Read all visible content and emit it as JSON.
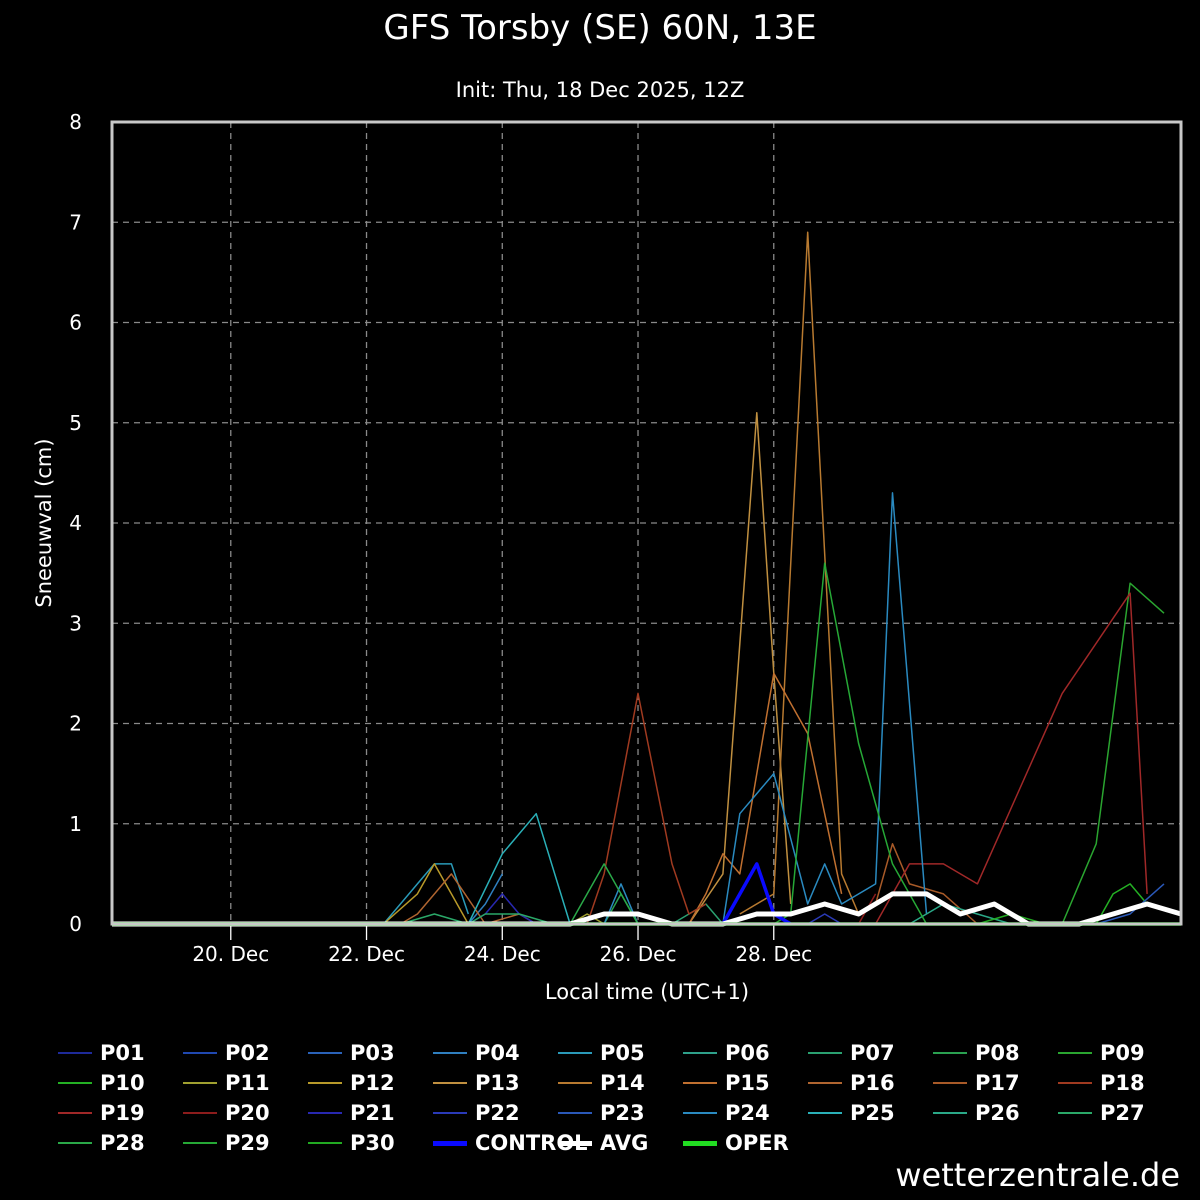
{
  "title": "GFS Torsby (SE) 60N, 13E",
  "subtitle": "Init: Thu, 18 Dec 2025, 12Z",
  "credit": "wetterzentrale.de",
  "chart_data": {
    "type": "line",
    "xlabel": "Local time (UTC+1)",
    "ylabel": "Sneeuwval (cm)",
    "ylim": [
      0,
      8
    ],
    "yticks": [
      "0",
      "1",
      "2",
      "3",
      "4",
      "5",
      "6",
      "7",
      "8"
    ],
    "xlim": [
      "2025-12-18T19:00",
      "2026-01-03T13:00"
    ],
    "xticks": [
      {
        "t": "2025-12-20T13:00",
        "label": "20. Dec"
      },
      {
        "t": "2025-12-22T13:00",
        "label": "22. Dec"
      },
      {
        "t": "2025-12-24T13:00",
        "label": "24. Dec"
      },
      {
        "t": "2025-12-26T13:00",
        "label": "26. Dec"
      },
      {
        "t": "2025-12-28T13:00",
        "label": "28. Dec"
      }
    ],
    "grid": true,
    "legend_position": "bottom",
    "series": [
      {
        "name": "P01",
        "color": "#1e2a9a",
        "width": 1.5,
        "points": []
      },
      {
        "name": "P02",
        "color": "#2048b0",
        "width": 1.5,
        "points": []
      },
      {
        "name": "P03",
        "color": "#2a62b8",
        "width": 1.5,
        "points": []
      },
      {
        "name": "P04",
        "color": "#2f7fbf",
        "width": 1.5,
        "points": [
          [
            "2025-12-24T01:00",
            0
          ],
          [
            "2025-12-24T07:00",
            0.2
          ],
          [
            "2025-12-24T13:00",
            0.5
          ]
        ]
      },
      {
        "name": "P05",
        "color": "#2a9ab8",
        "width": 1.5,
        "points": [
          [
            "2025-12-22T19:00",
            0
          ],
          [
            "2025-12-23T07:00",
            0.4
          ],
          [
            "2025-12-23T13:00",
            0.6
          ],
          [
            "2025-12-23T19:00",
            0.6
          ],
          [
            "2025-12-24T01:00",
            0.1
          ]
        ]
      },
      {
        "name": "P06",
        "color": "#2ea08a",
        "width": 1.5,
        "points": []
      },
      {
        "name": "P07",
        "color": "#2aa070",
        "width": 1.5,
        "points": [
          [
            "2025-12-27T01:00",
            0
          ],
          [
            "2025-12-27T13:00",
            0.2
          ],
          [
            "2025-12-27T19:00",
            0
          ]
        ]
      },
      {
        "name": "P08",
        "color": "#2aa050",
        "width": 1.5,
        "points": [
          [
            "2025-12-26T01:00",
            0
          ],
          [
            "2025-12-26T07:00",
            0.3
          ],
          [
            "2025-12-26T13:00",
            0
          ]
        ]
      },
      {
        "name": "P09",
        "color": "#2aa530",
        "width": 1.5,
        "points": [
          [
            "2026-01-01T19:00",
            0
          ],
          [
            "2026-01-02T07:00",
            0.8
          ],
          [
            "2026-01-02T19:00",
            3.4
          ],
          [
            "2026-01-03T07:00",
            3.1
          ]
        ]
      },
      {
        "name": "P10",
        "color": "#24b024",
        "width": 1.5,
        "points": [
          [
            "2026-01-02T07:00",
            0
          ],
          [
            "2026-01-02T13:00",
            0.3
          ],
          [
            "2026-01-02T19:00",
            0.4
          ],
          [
            "2026-01-03T01:00",
            0.2
          ]
        ]
      },
      {
        "name": "P11",
        "color": "#a0a030",
        "width": 1.5,
        "points": [
          [
            "2025-12-25T13:00",
            0
          ],
          [
            "2025-12-25T19:00",
            0.1
          ],
          [
            "2025-12-26T01:00",
            0
          ]
        ]
      },
      {
        "name": "P12",
        "color": "#b89a2a",
        "width": 1.5,
        "points": [
          [
            "2025-12-22T19:00",
            0
          ],
          [
            "2025-12-23T07:00",
            0.3
          ],
          [
            "2025-12-23T13:00",
            0.6
          ],
          [
            "2025-12-23T19:00",
            0.3
          ],
          [
            "2025-12-24T01:00",
            0
          ]
        ]
      },
      {
        "name": "P13",
        "color": "#c09040",
        "width": 1.5,
        "points": [
          [
            "2025-12-27T07:00",
            0
          ],
          [
            "2025-12-27T19:00",
            0.5
          ],
          [
            "2025-12-28T07:00",
            5.1
          ],
          [
            "2025-12-28T13:00",
            2.5
          ],
          [
            "2025-12-28T19:00",
            0.2
          ]
        ]
      },
      {
        "name": "P14",
        "color": "#b87a30",
        "width": 1.5,
        "points": [
          [
            "2025-12-28T01:00",
            0.1
          ],
          [
            "2025-12-28T13:00",
            0.3
          ],
          [
            "2025-12-29T01:00",
            6.9
          ],
          [
            "2025-12-29T13:00",
            0.5
          ],
          [
            "2025-12-29T19:00",
            0.1
          ]
        ]
      },
      {
        "name": "P15",
        "color": "#c07030",
        "width": 1.5,
        "points": [
          [
            "2025-12-27T07:00",
            0
          ],
          [
            "2025-12-27T13:00",
            0.3
          ],
          [
            "2025-12-27T19:00",
            0.7
          ],
          [
            "2025-12-28T01:00",
            0.5
          ],
          [
            "2025-12-28T13:00",
            2.5
          ],
          [
            "2025-12-29T01:00",
            1.9
          ],
          [
            "2025-12-29T13:00",
            0.3
          ]
        ]
      },
      {
        "name": "P16",
        "color": "#b06530",
        "width": 1.5,
        "points": [
          [
            "2025-12-23T01:00",
            0
          ],
          [
            "2025-12-23T07:00",
            0.1
          ],
          [
            "2025-12-23T19:00",
            0.5
          ],
          [
            "2025-12-24T07:00",
            0
          ],
          [
            "2025-12-24T19:00",
            0.1
          ],
          [
            "2025-12-25T01:00",
            0
          ]
        ]
      },
      {
        "name": "P17",
        "color": "#a85a28",
        "width": 1.5,
        "points": [
          [
            "2025-12-30T01:00",
            0.2
          ],
          [
            "2025-12-30T07:00",
            0.8
          ],
          [
            "2025-12-30T13:00",
            0.4
          ],
          [
            "2025-12-31T01:00",
            0.3
          ],
          [
            "2025-12-31T13:00",
            0
          ]
        ]
      },
      {
        "name": "P18",
        "color": "#a03a20",
        "width": 1.5,
        "points": [
          [
            "2025-12-25T19:00",
            0
          ],
          [
            "2025-12-26T01:00",
            0.5
          ],
          [
            "2025-12-26T13:00",
            2.3
          ],
          [
            "2025-12-27T01:00",
            0.6
          ],
          [
            "2025-12-27T07:00",
            0.1
          ],
          [
            "2025-12-27T13:00",
            0.2
          ]
        ]
      },
      {
        "name": "P19",
        "color": "#a02828",
        "width": 1.5,
        "points": [
          [
            "2025-12-30T01:00",
            0
          ],
          [
            "2025-12-30T13:00",
            0.6
          ],
          [
            "2025-12-31T01:00",
            0.6
          ],
          [
            "2025-12-31T13:00",
            0.4
          ],
          [
            "2026-01-01T19:00",
            2.3
          ],
          [
            "2026-01-02T19:00",
            3.3
          ],
          [
            "2026-01-03T01:00",
            0.3
          ]
        ]
      },
      {
        "name": "P20",
        "color": "#8c1c1c",
        "width": 1.5,
        "points": [
          [
            "2025-12-29T19:00",
            0
          ],
          [
            "2025-12-30T01:00",
            0.3
          ]
        ]
      },
      {
        "name": "P21",
        "color": "#2828b0",
        "width": 1.5,
        "points": [
          [
            "2025-12-24T01:00",
            0
          ],
          [
            "2025-12-24T07:00",
            0.1
          ],
          [
            "2025-12-24T13:00",
            0.3
          ],
          [
            "2025-12-24T19:00",
            0.1
          ],
          [
            "2025-12-25T01:00",
            0
          ]
        ]
      },
      {
        "name": "P22",
        "color": "#2a3ab8",
        "width": 1.5,
        "points": [
          [
            "2025-12-29T01:00",
            0
          ],
          [
            "2025-12-29T07:00",
            0.1
          ],
          [
            "2025-12-29T13:00",
            0
          ]
        ]
      },
      {
        "name": "P23",
        "color": "#2a58b8",
        "width": 1.5,
        "points": [
          [
            "2026-01-02T07:00",
            0
          ],
          [
            "2026-01-02T19:00",
            0.1
          ],
          [
            "2026-01-03T07:00",
            0.4
          ]
        ]
      },
      {
        "name": "P24",
        "color": "#2a8ac0",
        "width": 1.5,
        "points": [
          [
            "2025-12-26T01:00",
            0
          ],
          [
            "2025-12-26T07:00",
            0.4
          ],
          [
            "2025-12-26T13:00",
            0
          ],
          [
            "2025-12-27T19:00",
            0
          ],
          [
            "2025-12-28T01:00",
            1.1
          ],
          [
            "2025-12-28T13:00",
            1.5
          ],
          [
            "2025-12-29T01:00",
            0.2
          ],
          [
            "2025-12-29T07:00",
            0.6
          ],
          [
            "2025-12-29T13:00",
            0.2
          ],
          [
            "2025-12-30T01:00",
            0.4
          ],
          [
            "2025-12-30T07:00",
            4.3
          ],
          [
            "2025-12-30T19:00",
            0.1
          ]
        ]
      },
      {
        "name": "P25",
        "color": "#2ab0b8",
        "width": 1.5,
        "points": [
          [
            "2025-12-24T01:00",
            0
          ],
          [
            "2025-12-24T13:00",
            0.7
          ],
          [
            "2025-12-25T01:00",
            1.1
          ],
          [
            "2025-12-25T13:00",
            0
          ]
        ]
      },
      {
        "name": "P26",
        "color": "#2aa888",
        "width": 1.5,
        "points": [
          [
            "2025-12-30T13:00",
            0
          ],
          [
            "2025-12-31T01:00",
            0.2
          ],
          [
            "2025-12-31T13:00",
            0.1
          ],
          [
            "2026-01-01T01:00",
            0
          ]
        ]
      },
      {
        "name": "P27",
        "color": "#2aa868",
        "width": 1.5,
        "points": [
          [
            "2025-12-23T01:00",
            0
          ],
          [
            "2025-12-23T13:00",
            0.1
          ],
          [
            "2025-12-24T01:00",
            0
          ],
          [
            "2025-12-24T07:00",
            0.1
          ],
          [
            "2025-12-24T19:00",
            0.1
          ],
          [
            "2025-12-25T07:00",
            0
          ]
        ]
      },
      {
        "name": "P28",
        "color": "#2aa848",
        "width": 1.5,
        "points": [
          [
            "2025-12-25T13:00",
            0
          ],
          [
            "2025-12-26T01:00",
            0.6
          ],
          [
            "2025-12-26T13:00",
            0
          ]
        ]
      },
      {
        "name": "P29",
        "color": "#26a836",
        "width": 1.5,
        "points": [
          [
            "2025-12-28T13:00",
            0
          ],
          [
            "2025-12-28T19:00",
            0.1
          ],
          [
            "2025-12-29T07:00",
            3.6
          ],
          [
            "2025-12-29T19:00",
            1.8
          ],
          [
            "2025-12-30T07:00",
            0.6
          ],
          [
            "2025-12-30T19:00",
            0
          ]
        ]
      },
      {
        "name": "P30",
        "color": "#22aa22",
        "width": 1.5,
        "points": [
          [
            "2025-12-31T13:00",
            0
          ],
          [
            "2026-01-01T01:00",
            0.1
          ],
          [
            "2026-01-01T13:00",
            0
          ]
        ]
      },
      {
        "name": "CONTROL",
        "color": "#0a0aff",
        "width": 3.5,
        "points": [
          [
            "2025-12-27T19:00",
            0
          ],
          [
            "2025-12-28T07:00",
            0.6
          ],
          [
            "2025-12-28T13:00",
            0.1
          ],
          [
            "2025-12-28T19:00",
            0
          ]
        ]
      },
      {
        "name": "AVG",
        "color": "#ffffff",
        "width": 5,
        "points": [
          [
            "2025-12-18T19:00",
            0
          ],
          [
            "2025-12-25T13:00",
            0
          ],
          [
            "2025-12-26T01:00",
            0.1
          ],
          [
            "2025-12-26T13:00",
            0.1
          ],
          [
            "2025-12-27T01:00",
            0
          ],
          [
            "2025-12-27T19:00",
            0
          ],
          [
            "2025-12-28T07:00",
            0.1
          ],
          [
            "2025-12-28T19:00",
            0.1
          ],
          [
            "2025-12-29T07:00",
            0.2
          ],
          [
            "2025-12-29T19:00",
            0.1
          ],
          [
            "2025-12-30T07:00",
            0.3
          ],
          [
            "2025-12-30T19:00",
            0.3
          ],
          [
            "2025-12-31T07:00",
            0.1
          ],
          [
            "2025-12-31T19:00",
            0.2
          ],
          [
            "2026-01-01T07:00",
            0
          ],
          [
            "2026-01-02T01:00",
            0
          ],
          [
            "2026-01-02T13:00",
            0.1
          ],
          [
            "2026-01-03T01:00",
            0.2
          ],
          [
            "2026-01-03T13:00",
            0.1
          ]
        ]
      },
      {
        "name": "OPER",
        "color": "#22dd22",
        "width": 3.5,
        "points": [
          [
            "2025-12-18T19:00",
            0
          ],
          [
            "2026-01-03T13:00",
            0
          ]
        ]
      }
    ]
  }
}
